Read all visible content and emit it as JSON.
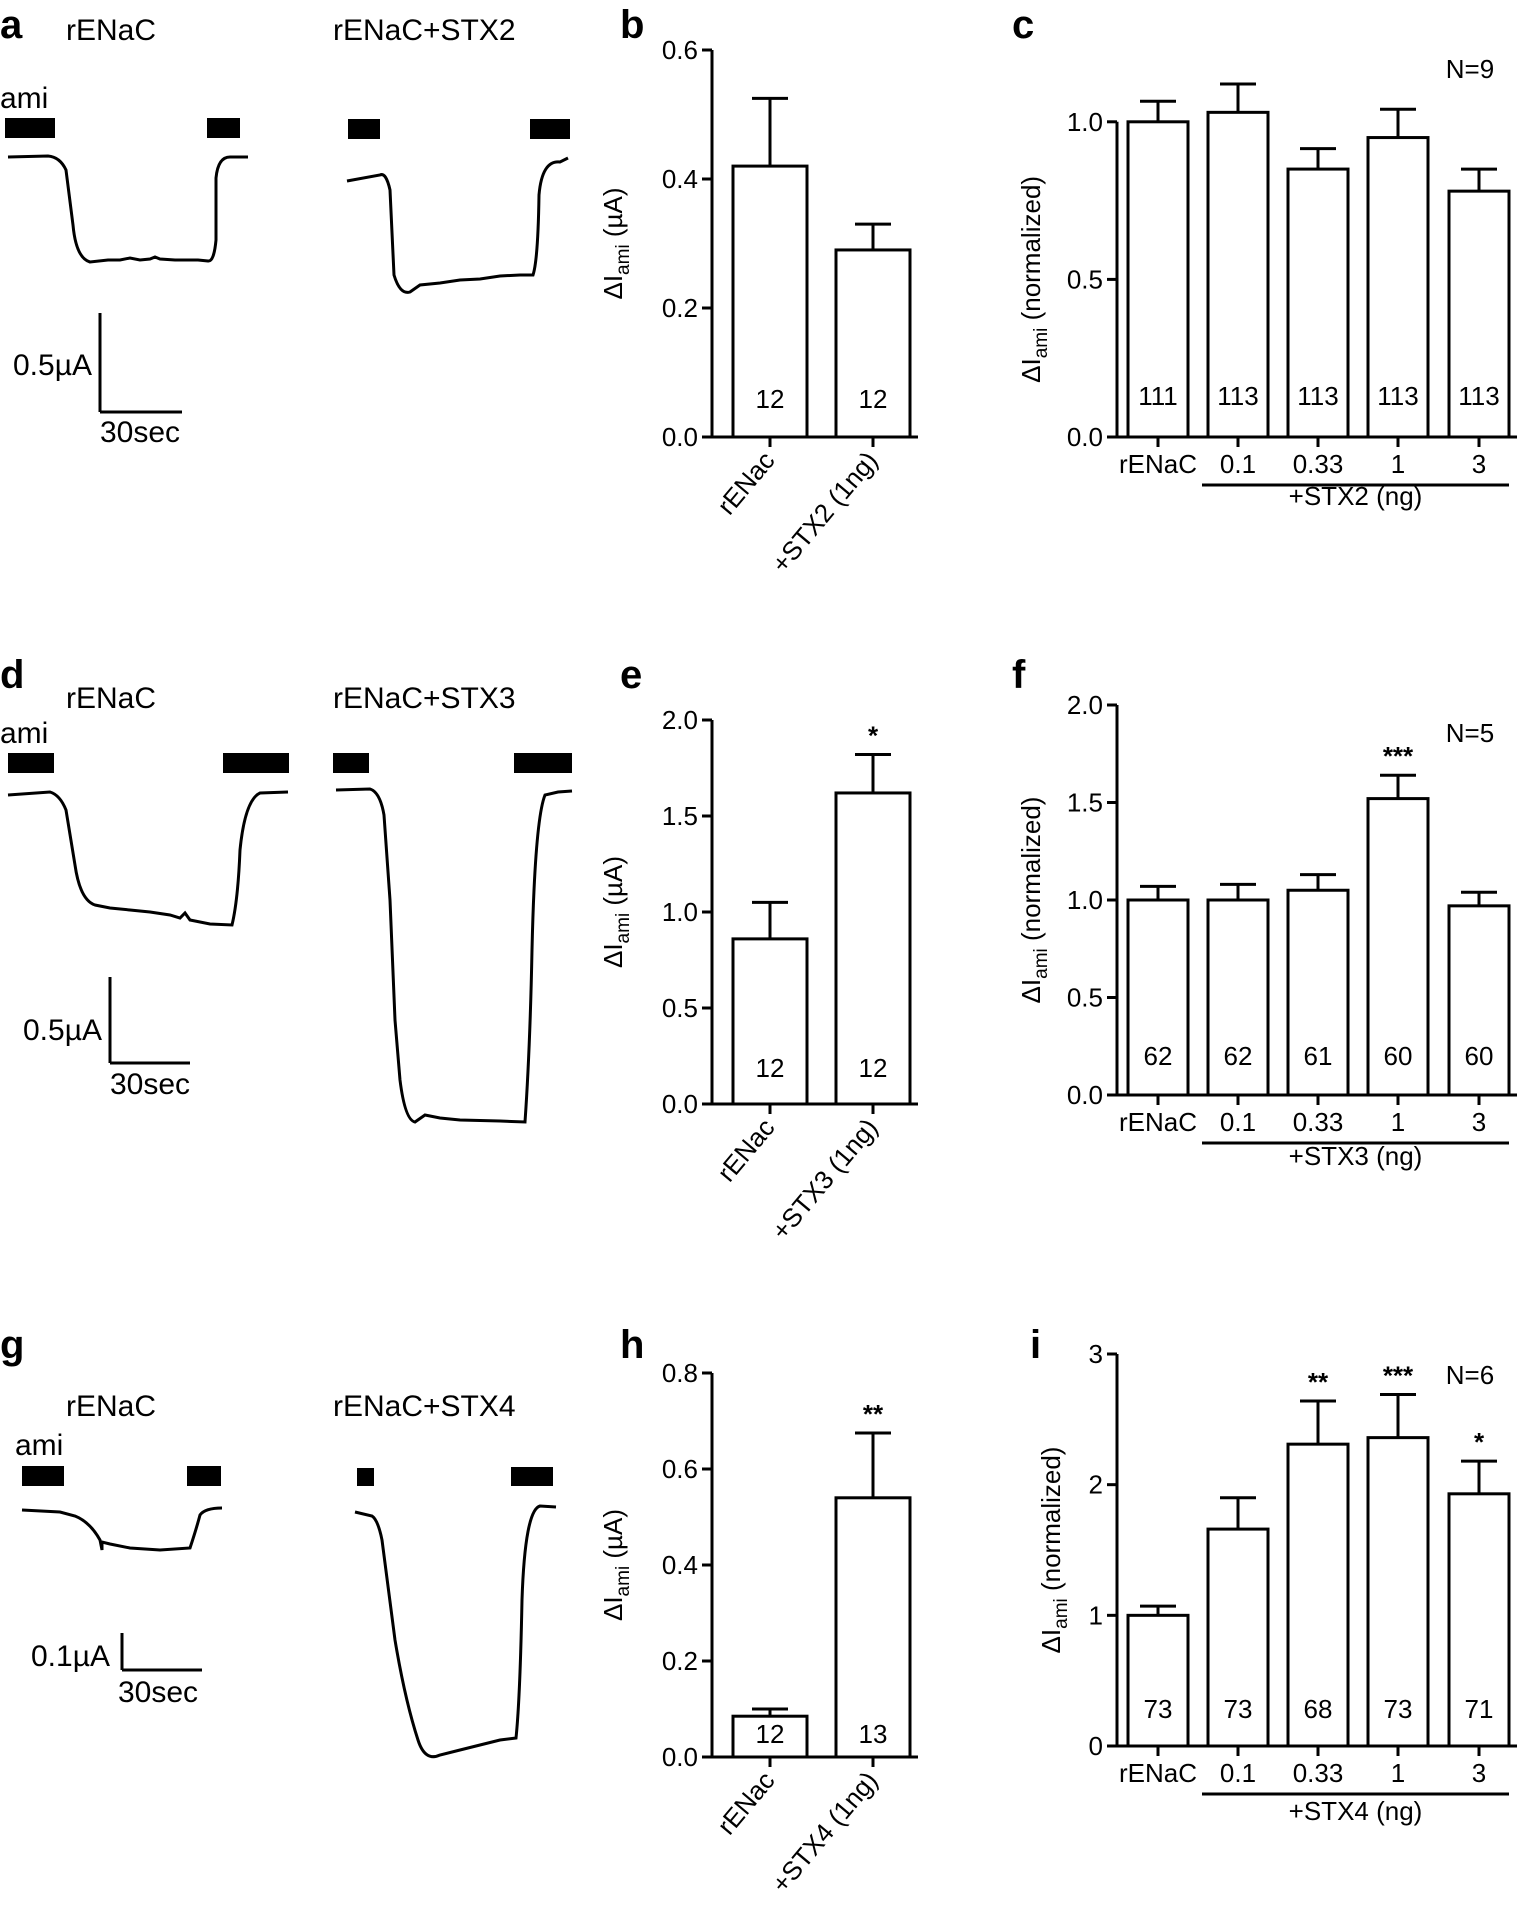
{
  "figure": {
    "panels": [
      {
        "letter": "a",
        "type": "trace",
        "ami_label": "ami",
        "titles": [
          "rENaC",
          "rENaC+STX2"
        ],
        "scale": {
          "y_label": "0.5µA",
          "x_label": "30sec"
        }
      },
      {
        "letter": "b",
        "type": "bar2",
        "chart_index": 0
      },
      {
        "letter": "c",
        "type": "bar5",
        "chart_index": 1
      },
      {
        "letter": "d",
        "type": "trace",
        "ami_label": "ami",
        "titles": [
          "rENaC",
          "rENaC+STX3"
        ],
        "scale": {
          "y_label": "0.5µA",
          "x_label": "30sec"
        }
      },
      {
        "letter": "e",
        "type": "bar2",
        "chart_index": 2
      },
      {
        "letter": "f",
        "type": "bar5",
        "chart_index": 3
      },
      {
        "letter": "g",
        "type": "trace",
        "ami_label": "ami",
        "titles": [
          "rENaC",
          "rENaC+STX4"
        ],
        "scale": {
          "y_label": "0.1µA",
          "x_label": "30sec"
        }
      },
      {
        "letter": "h",
        "type": "bar2",
        "chart_index": 4
      },
      {
        "letter": "i",
        "type": "bar5",
        "chart_index": 5
      }
    ]
  },
  "chart_data": [
    {
      "panel": "b",
      "type": "bar",
      "categories": [
        "rENac",
        "+STX2 (1ng)"
      ],
      "values": [
        0.42,
        0.29
      ],
      "errors": [
        0.105,
        0.04
      ],
      "n": [
        "12",
        "12"
      ],
      "significance": [
        "",
        ""
      ],
      "ylabel": "ΔIami (µA)",
      "ylim": [
        0,
        0.6
      ],
      "yticks": [
        "0.0",
        "0.2",
        "0.4",
        "0.6"
      ]
    },
    {
      "panel": "c",
      "type": "bar",
      "categories": [
        "rENaC",
        "0.1",
        "0.33",
        "1",
        "3"
      ],
      "group_label": "+STX2 (ng)",
      "values": [
        1.0,
        1.03,
        0.85,
        0.95,
        0.78
      ],
      "errors": [
        0.065,
        0.09,
        0.065,
        0.09,
        0.07
      ],
      "n": [
        "111",
        "113",
        "113",
        "113",
        "113"
      ],
      "significance": [
        "",
        "",
        "",
        "",
        ""
      ],
      "N": "N=9",
      "ylabel": "ΔIami (normalized)",
      "ylim": [
        0,
        1.25
      ],
      "yticks": [
        "0.0",
        "0.5",
        "1.0"
      ]
    },
    {
      "panel": "e",
      "type": "bar",
      "categories": [
        "rENac",
        "+STX3 (1ng)"
      ],
      "values": [
        0.86,
        1.62
      ],
      "errors": [
        0.19,
        0.2
      ],
      "n": [
        "12",
        "12"
      ],
      "significance": [
        "",
        "*"
      ],
      "ylabel": "ΔIami (µA)",
      "ylim": [
        0,
        2.0
      ],
      "yticks": [
        "0.0",
        "0.5",
        "1.0",
        "1.5",
        "2.0"
      ]
    },
    {
      "panel": "f",
      "type": "bar",
      "categories": [
        "rENaC",
        "0.1",
        "0.33",
        "1",
        "3"
      ],
      "group_label": "+STX3 (ng)",
      "values": [
        1.0,
        1.0,
        1.05,
        1.52,
        0.97
      ],
      "errors": [
        0.07,
        0.08,
        0.08,
        0.12,
        0.07
      ],
      "n": [
        "62",
        "62",
        "61",
        "60",
        "60"
      ],
      "significance": [
        "",
        "",
        "",
        "***",
        ""
      ],
      "N": "N=5",
      "ylabel": "ΔIami (normalized)",
      "ylim": [
        0,
        2.0
      ],
      "yticks": [
        "0.0",
        "0.5",
        "1.0",
        "1.5",
        "2.0"
      ]
    },
    {
      "panel": "h",
      "type": "bar",
      "categories": [
        "rENac",
        "+STX4 (1ng)"
      ],
      "values": [
        0.085,
        0.54
      ],
      "errors": [
        0.015,
        0.135
      ],
      "n": [
        "12",
        "13"
      ],
      "significance": [
        "",
        "**"
      ],
      "ylabel": "ΔIami (µA)",
      "ylim": [
        0,
        0.8
      ],
      "yticks": [
        "0.0",
        "0.2",
        "0.4",
        "0.6",
        "0.8"
      ]
    },
    {
      "panel": "i",
      "type": "bar",
      "categories": [
        "rENaC",
        "0.1",
        "0.33",
        "1",
        "3"
      ],
      "group_label": "+STX4 (ng)",
      "values": [
        1.0,
        1.66,
        2.31,
        2.36,
        1.93
      ],
      "errors": [
        0.07,
        0.24,
        0.33,
        0.33,
        0.25
      ],
      "n": [
        "73",
        "73",
        "68",
        "73",
        "71"
      ],
      "significance": [
        "",
        "",
        "**",
        "***",
        "*"
      ],
      "N": "N=6",
      "ylabel": "ΔIami (normalized)",
      "ylim": [
        0,
        3
      ],
      "yticks": [
        "0",
        "1",
        "2",
        "3"
      ]
    }
  ]
}
